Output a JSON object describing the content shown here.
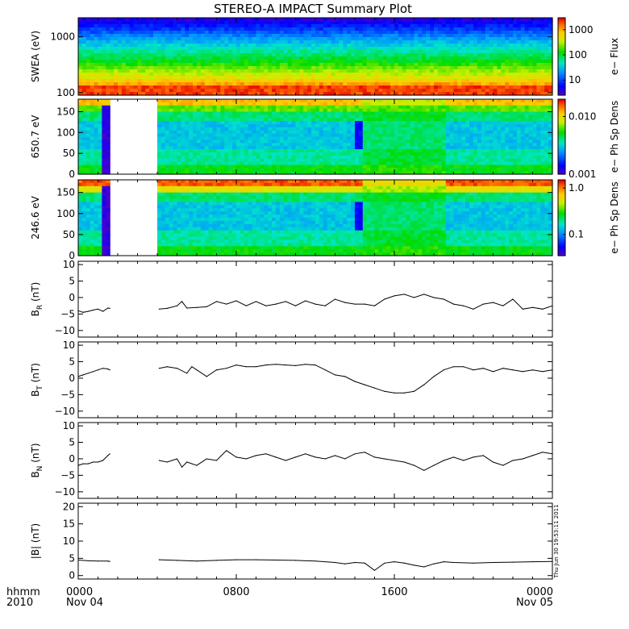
{
  "chart_data": {
    "title": "STEREO-A IMPACT Summary Plot",
    "time_axis": {
      "unit": "hours since 2010 Nov 04 0000",
      "range": [
        0,
        24
      ],
      "ticks": [
        {
          "h": 0,
          "label": "0000"
        },
        {
          "h": 8,
          "label": "0800"
        },
        {
          "h": 16,
          "label": "1600"
        },
        {
          "h": 24,
          "label": "0000"
        }
      ],
      "minor_ticks_every_h": 1,
      "date_labels": [
        "Nov 04",
        "Nov 05"
      ],
      "format_label": "hhmm",
      "year_label": "2010"
    },
    "side_stamp": "Thu Jun 30 19:53:11 2011",
    "data_gap_hours": [
      1.6,
      4.1
    ],
    "panels": [
      {
        "type": "heatmap",
        "name": "swea",
        "ylabel": "SWEA (eV)",
        "yscale": "log",
        "ylim": [
          90,
          2200
        ],
        "yticks": [
          {
            "v": 100,
            "label": "100"
          },
          {
            "v": 1000,
            "label": "1000"
          }
        ],
        "colorbar": {
          "label": "e− Flux",
          "scale": "log",
          "range": [
            2.5,
            3000
          ],
          "ticks": [
            {
              "v": 10,
              "label": "10"
            },
            {
              "v": 100,
              "label": "100"
            },
            {
              "v": 1000,
              "label": "1000"
            }
          ]
        },
        "gap": false
      },
      {
        "type": "heatmap",
        "name": "pad650",
        "ylabel": "650.7 eV",
        "yscale": "linear",
        "ylim": [
          0,
          180
        ],
        "yticks": [
          {
            "v": 0,
            "label": "0"
          },
          {
            "v": 50,
            "label": "50"
          },
          {
            "v": 100,
            "label": "100"
          },
          {
            "v": 150,
            "label": "150"
          }
        ],
        "colorbar": {
          "label": "e− Ph Sp Dens",
          "scale": "log",
          "range": [
            0.001,
            0.02
          ],
          "ticks": [
            {
              "v": 0.001,
              "label": "0.001"
            },
            {
              "v": 0.01,
              "label": "0.010"
            }
          ]
        },
        "gap": true
      },
      {
        "type": "heatmap",
        "name": "pad246",
        "ylabel": "246.6 eV",
        "yscale": "linear",
        "ylim": [
          0,
          180
        ],
        "yticks": [
          {
            "v": 0,
            "label": "0"
          },
          {
            "v": 50,
            "label": "50"
          },
          {
            "v": 100,
            "label": "100"
          },
          {
            "v": 150,
            "label": "150"
          }
        ],
        "colorbar": {
          "label": "e− Ph Sp Dens",
          "scale": "log",
          "range": [
            0.035,
            1.5
          ],
          "ticks": [
            {
              "v": 0.1,
              "label": "0.1"
            },
            {
              "v": 1,
              "label": "1.0"
            }
          ]
        },
        "gap": true
      },
      {
        "type": "line",
        "name": "br",
        "ylabel_main": "B",
        "ylabel_sub": "R",
        "ylabel_unit": " (nT)",
        "ylim": [
          -12,
          11
        ],
        "yticks": [
          {
            "v": -10,
            "label": "−10"
          },
          {
            "v": -5,
            "label": "−5"
          },
          {
            "v": 0,
            "label": "0"
          },
          {
            "v": 5,
            "label": "5"
          },
          {
            "v": 10,
            "label": "10"
          }
        ],
        "x": [
          0.0,
          0.25,
          0.5,
          0.75,
          1.0,
          1.25,
          1.5,
          1.6,
          4.1,
          4.5,
          5.0,
          5.25,
          5.5,
          6.0,
          6.5,
          7.0,
          7.5,
          8.0,
          8.5,
          9.0,
          9.5,
          10.0,
          10.5,
          11.0,
          11.5,
          12.0,
          12.5,
          13.0,
          13.5,
          14.0,
          14.5,
          15.0,
          15.5,
          16.0,
          16.5,
          17.0,
          17.5,
          18.0,
          18.5,
          19.0,
          19.5,
          20.0,
          20.5,
          21.0,
          21.5,
          22.0,
          22.5,
          23.0,
          23.5,
          24.0
        ],
        "y": [
          -4.0,
          -4.5,
          -4.2,
          -3.8,
          -3.5,
          -4.2,
          -3.2,
          -3.3,
          -3.5,
          -3.3,
          -2.5,
          -1.2,
          -3.2,
          -3.0,
          -2.8,
          -1.2,
          -2.0,
          -1.0,
          -2.5,
          -1.2,
          -2.5,
          -2.0,
          -1.2,
          -2.5,
          -1.0,
          -2.0,
          -2.5,
          -0.5,
          -1.5,
          -2.0,
          -2.0,
          -2.5,
          -0.5,
          0.5,
          1.0,
          0.0,
          1.0,
          0.0,
          -0.5,
          -2.0,
          -2.5,
          -3.5,
          -2.0,
          -1.5,
          -2.5,
          -0.5,
          -3.5,
          -3.0,
          -3.5,
          -2.5
        ]
      },
      {
        "type": "line",
        "name": "bt",
        "ylabel_main": "B",
        "ylabel_sub": "T",
        "ylabel_unit": " (nT)",
        "ylim": [
          -12,
          11
        ],
        "yticks": [
          {
            "v": -10,
            "label": "−10"
          },
          {
            "v": -5,
            "label": "−5"
          },
          {
            "v": 0,
            "label": "0"
          },
          {
            "v": 5,
            "label": "5"
          },
          {
            "v": 10,
            "label": "10"
          }
        ],
        "x": [
          0.0,
          0.25,
          0.5,
          0.75,
          1.0,
          1.25,
          1.5,
          1.6,
          4.1,
          4.5,
          5.0,
          5.5,
          5.75,
          6.0,
          6.5,
          7.0,
          7.5,
          8.0,
          8.5,
          9.0,
          9.5,
          10.0,
          10.5,
          11.0,
          11.5,
          12.0,
          12.5,
          13.0,
          13.5,
          14.0,
          14.5,
          15.0,
          15.5,
          16.0,
          16.5,
          17.0,
          17.5,
          18.0,
          18.5,
          19.0,
          19.5,
          20.0,
          20.5,
          21.0,
          21.5,
          22.0,
          22.5,
          23.0,
          23.5,
          24.0
        ],
        "y": [
          0.5,
          1.0,
          1.5,
          2.0,
          2.5,
          3.0,
          2.8,
          2.5,
          3.0,
          3.5,
          3.0,
          1.5,
          3.5,
          2.5,
          0.5,
          2.5,
          3.0,
          4.0,
          3.5,
          3.5,
          4.0,
          4.2,
          4.0,
          3.8,
          4.2,
          4.0,
          2.5,
          1.0,
          0.5,
          -1.0,
          -2.0,
          -3.0,
          -4.0,
          -4.5,
          -4.5,
          -4.0,
          -2.0,
          0.5,
          2.5,
          3.5,
          3.5,
          2.5,
          3.0,
          2.0,
          3.0,
          2.5,
          2.0,
          2.5,
          2.0,
          2.5
        ]
      },
      {
        "type": "line",
        "name": "bn",
        "ylabel_main": "B",
        "ylabel_sub": "N",
        "ylabel_unit": " (nT)",
        "ylim": [
          -12,
          11
        ],
        "yticks": [
          {
            "v": -10,
            "label": "−10"
          },
          {
            "v": -5,
            "label": "−5"
          },
          {
            "v": 0,
            "label": "0"
          },
          {
            "v": 5,
            "label": "5"
          },
          {
            "v": 10,
            "label": "10"
          }
        ],
        "x": [
          0.0,
          0.25,
          0.5,
          0.75,
          1.0,
          1.25,
          1.5,
          1.6,
          4.1,
          4.5,
          5.0,
          5.25,
          5.5,
          6.0,
          6.5,
          7.0,
          7.5,
          8.0,
          8.5,
          9.0,
          9.5,
          10.0,
          10.5,
          11.0,
          11.5,
          12.0,
          12.5,
          13.0,
          13.5,
          14.0,
          14.5,
          15.0,
          15.5,
          16.0,
          16.5,
          17.0,
          17.5,
          18.0,
          18.5,
          19.0,
          19.5,
          20.0,
          20.5,
          21.0,
          21.5,
          22.0,
          22.5,
          23.0,
          23.5,
          24.0
        ],
        "y": [
          -2.0,
          -1.5,
          -1.5,
          -1.0,
          -1.0,
          -0.5,
          1.0,
          1.5,
          -0.5,
          -1.0,
          0.0,
          -2.5,
          -1.0,
          -2.0,
          0.0,
          -0.5,
          2.5,
          0.5,
          0.0,
          1.0,
          1.5,
          0.5,
          -0.5,
          0.5,
          1.5,
          0.5,
          0.0,
          1.0,
          0.0,
          1.5,
          2.0,
          0.5,
          0.0,
          -0.5,
          -1.0,
          -2.0,
          -3.5,
          -2.0,
          -0.5,
          0.5,
          -0.5,
          0.5,
          1.0,
          -1.0,
          -2.0,
          -0.5,
          0.0,
          1.0,
          2.0,
          1.5
        ]
      },
      {
        "type": "line",
        "name": "bmag",
        "ylabel_main": "|B| (nT)",
        "ylim": [
          -1,
          21
        ],
        "yticks": [
          {
            "v": 0,
            "label": "0"
          },
          {
            "v": 5,
            "label": "5"
          },
          {
            "v": 10,
            "label": "10"
          },
          {
            "v": 15,
            "label": "15"
          },
          {
            "v": 20,
            "label": "20"
          }
        ],
        "x": [
          0.0,
          0.5,
          1.0,
          1.5,
          1.6,
          4.1,
          5.0,
          6.0,
          7.0,
          8.0,
          9.0,
          10.0,
          11.0,
          12.0,
          13.0,
          13.5,
          14.0,
          14.5,
          15.0,
          15.5,
          16.0,
          16.5,
          17.0,
          17.5,
          18.0,
          18.5,
          19.0,
          20.0,
          21.0,
          22.0,
          23.0,
          24.0
        ],
        "y": [
          4.5,
          4.3,
          4.2,
          4.2,
          4.1,
          4.6,
          4.4,
          4.2,
          4.4,
          4.6,
          4.6,
          4.5,
          4.4,
          4.2,
          3.8,
          3.4,
          3.8,
          3.6,
          1.5,
          3.6,
          4.0,
          3.6,
          3.0,
          2.5,
          3.4,
          4.0,
          3.8,
          3.6,
          3.8,
          3.9,
          4.0,
          4.1
        ]
      }
    ]
  }
}
